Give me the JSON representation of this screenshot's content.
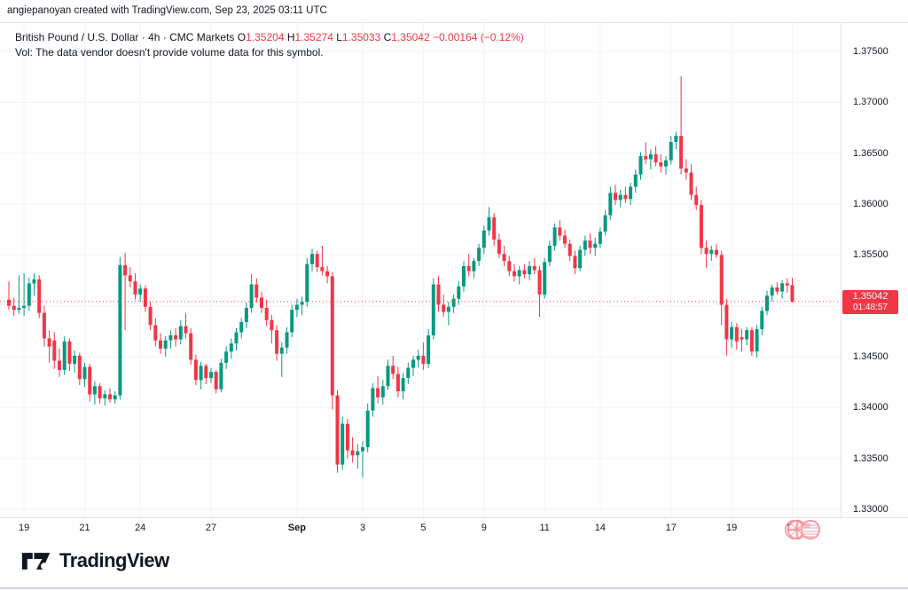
{
  "attribution": "angiepanoyan created with TradingView.com, Sep 23, 2025 03:11 UTC",
  "legend": {
    "title": "British Pound / U.S. Dollar · 4h · CMC Markets",
    "ohlc": [
      {
        "label": "O",
        "value": "1.35204"
      },
      {
        "label": "H",
        "value": "1.35274"
      },
      {
        "label": "L",
        "value": "1.35033"
      },
      {
        "label": "C",
        "value": "1.35042"
      }
    ],
    "change": "−0.00164 (−0.12%)",
    "volume_note": "Vol: The data vendor doesn't provide volume data for this symbol."
  },
  "price_badge": {
    "price": "1.35042",
    "countdown": "01:48:57"
  },
  "logo": {
    "text": "TradingView"
  },
  "watermark": {
    "icons": [
      "gb-flag-icon",
      "us-flag-icon"
    ]
  },
  "colors": {
    "up": "#089981",
    "down": "#f23645",
    "accent_red": "#f23645",
    "grid": "#f0f3fa",
    "axis_border": "#e0e3eb",
    "text": "#131722",
    "watermark_pink": "#f48a92"
  },
  "chart_data": {
    "type": "candlestick",
    "title": "British Pound / U.S. Dollar",
    "interval": "4h",
    "exchange": "CMC Markets",
    "ylim": [
      1.33,
      1.375
    ],
    "grid": true,
    "last_price": 1.35042,
    "price_axis_labels": [
      {
        "text": "1.37500",
        "price": 1.375
      },
      {
        "text": "1.37000",
        "price": 1.37
      },
      {
        "text": "1.36500",
        "price": 1.365
      },
      {
        "text": "1.36000",
        "price": 1.36
      },
      {
        "text": "1.35500",
        "price": 1.355
      },
      {
        "text": "1.34500",
        "price": 1.345
      },
      {
        "text": "1.34000",
        "price": 1.34
      },
      {
        "text": "1.33500",
        "price": 1.335
      },
      {
        "text": "1.33000",
        "price": 1.33
      }
    ],
    "price_gridlines": [
      1.375,
      1.37,
      1.365,
      1.36,
      1.355,
      1.35,
      1.345,
      1.34,
      1.335,
      1.33
    ],
    "time_ticks": [
      {
        "label": "19",
        "bar": 3,
        "bold": false
      },
      {
        "label": "21",
        "bar": 15,
        "bold": false
      },
      {
        "label": "24",
        "bar": 26,
        "bold": false
      },
      {
        "label": "27",
        "bar": 40,
        "bold": false
      },
      {
        "label": "Sep",
        "bar": 57,
        "bold": true
      },
      {
        "label": "3",
        "bar": 70,
        "bold": false
      },
      {
        "label": "5",
        "bar": 82,
        "bold": false
      },
      {
        "label": "9",
        "bar": 94,
        "bold": false
      },
      {
        "label": "11",
        "bar": 106,
        "bold": false
      },
      {
        "label": "14",
        "bar": 117,
        "bold": false
      },
      {
        "label": "17",
        "bar": 131,
        "bold": false
      },
      {
        "label": "19",
        "bar": 143,
        "bold": false
      },
      {
        "label": "23",
        "bar": 155,
        "bold": false
      }
    ],
    "candles": [
      [
        1.3506,
        1.3524,
        1.3496,
        1.35
      ],
      [
        1.35,
        1.3508,
        1.349,
        1.3496
      ],
      [
        1.3496,
        1.353,
        1.3492,
        1.3498
      ],
      [
        1.3498,
        1.3532,
        1.349,
        1.35
      ],
      [
        1.35,
        1.3528,
        1.3495,
        1.3522
      ],
      [
        1.3522,
        1.3532,
        1.351,
        1.3526
      ],
      [
        1.3526,
        1.353,
        1.3488,
        1.3493
      ],
      [
        1.3493,
        1.35,
        1.346,
        1.3468
      ],
      [
        1.3468,
        1.3476,
        1.3444,
        1.346
      ],
      [
        1.3466,
        1.3474,
        1.3438,
        1.3446
      ],
      [
        1.3446,
        1.3458,
        1.343,
        1.3437
      ],
      [
        1.3437,
        1.347,
        1.3432,
        1.3465
      ],
      [
        1.3465,
        1.3468,
        1.3436,
        1.3443
      ],
      [
        1.3443,
        1.3456,
        1.3434,
        1.3451
      ],
      [
        1.3451,
        1.3454,
        1.3422,
        1.3428
      ],
      [
        1.3428,
        1.3444,
        1.342,
        1.344
      ],
      [
        1.344,
        1.3443,
        1.3406,
        1.3413
      ],
      [
        1.3413,
        1.3426,
        1.3403,
        1.3421
      ],
      [
        1.3421,
        1.3424,
        1.3404,
        1.3409
      ],
      [
        1.3409,
        1.3417,
        1.3402,
        1.3413
      ],
      [
        1.3413,
        1.3419,
        1.3405,
        1.3408
      ],
      [
        1.3408,
        1.3416,
        1.3404,
        1.3412
      ],
      [
        1.3412,
        1.3548,
        1.3408,
        1.354
      ],
      [
        1.354,
        1.3552,
        1.3476,
        1.353
      ],
      [
        1.353,
        1.3538,
        1.3518,
        1.3524
      ],
      [
        1.3524,
        1.3532,
        1.3506,
        1.3511
      ],
      [
        1.3511,
        1.3521,
        1.3504,
        1.3517
      ],
      [
        1.3517,
        1.352,
        1.3494,
        1.3499
      ],
      [
        1.3499,
        1.3504,
        1.3476,
        1.3481
      ],
      [
        1.3481,
        1.3488,
        1.346,
        1.3466
      ],
      [
        1.3466,
        1.3473,
        1.3453,
        1.3458
      ],
      [
        1.3458,
        1.347,
        1.345,
        1.3466
      ],
      [
        1.3466,
        1.3476,
        1.3458,
        1.3471
      ],
      [
        1.3471,
        1.3478,
        1.346,
        1.3467
      ],
      [
        1.3467,
        1.3486,
        1.3462,
        1.348
      ],
      [
        1.348,
        1.3493,
        1.3468,
        1.3473
      ],
      [
        1.3473,
        1.3478,
        1.3442,
        1.3447
      ],
      [
        1.3447,
        1.3452,
        1.3422,
        1.3427
      ],
      [
        1.3427,
        1.3445,
        1.3418,
        1.3441
      ],
      [
        1.3441,
        1.3443,
        1.3423,
        1.3429
      ],
      [
        1.3429,
        1.3439,
        1.3424,
        1.3435
      ],
      [
        1.3435,
        1.3437,
        1.3414,
        1.3418
      ],
      [
        1.3418,
        1.3448,
        1.3415,
        1.3444
      ],
      [
        1.3444,
        1.346,
        1.3438,
        1.3455
      ],
      [
        1.3455,
        1.3468,
        1.3448,
        1.3463
      ],
      [
        1.3463,
        1.3478,
        1.3456,
        1.3474
      ],
      [
        1.3474,
        1.3488,
        1.3468,
        1.3484
      ],
      [
        1.3484,
        1.3503,
        1.3478,
        1.3498
      ],
      [
        1.3498,
        1.3531,
        1.3493,
        1.3521
      ],
      [
        1.3521,
        1.3527,
        1.3503,
        1.3508
      ],
      [
        1.3508,
        1.3514,
        1.3493,
        1.3498
      ],
      [
        1.3498,
        1.3506,
        1.348,
        1.3486
      ],
      [
        1.3486,
        1.3491,
        1.3463,
        1.3476
      ],
      [
        1.3476,
        1.3481,
        1.3446,
        1.3453
      ],
      [
        1.3453,
        1.3464,
        1.343,
        1.3459
      ],
      [
        1.3459,
        1.3479,
        1.3453,
        1.3474
      ],
      [
        1.3474,
        1.3501,
        1.3469,
        1.3496
      ],
      [
        1.3496,
        1.3507,
        1.3489,
        1.3501
      ],
      [
        1.3501,
        1.3509,
        1.3491,
        1.3504
      ],
      [
        1.3504,
        1.3547,
        1.3499,
        1.3541
      ],
      [
        1.3541,
        1.3556,
        1.3534,
        1.3551
      ],
      [
        1.3551,
        1.3554,
        1.3533,
        1.3538
      ],
      [
        1.3538,
        1.3559,
        1.353,
        1.3534
      ],
      [
        1.3534,
        1.3539,
        1.3522,
        1.3529
      ],
      [
        1.3529,
        1.3533,
        1.3398,
        1.3412
      ],
      [
        1.3412,
        1.3417,
        1.3336,
        1.3344
      ],
      [
        1.3344,
        1.3391,
        1.3339,
        1.3384
      ],
      [
        1.3384,
        1.3389,
        1.335,
        1.3358
      ],
      [
        1.3358,
        1.3371,
        1.3346,
        1.3353
      ],
      [
        1.3353,
        1.3364,
        1.334,
        1.3357
      ],
      [
        1.3357,
        1.3367,
        1.3331,
        1.3361
      ],
      [
        1.3361,
        1.3404,
        1.3356,
        1.3397
      ],
      [
        1.3397,
        1.3424,
        1.3391,
        1.3419
      ],
      [
        1.3419,
        1.3431,
        1.3404,
        1.341
      ],
      [
        1.341,
        1.3427,
        1.3403,
        1.3421
      ],
      [
        1.3421,
        1.3447,
        1.3417,
        1.3441
      ],
      [
        1.3441,
        1.3451,
        1.3428,
        1.3433
      ],
      [
        1.3433,
        1.344,
        1.341,
        1.3416
      ],
      [
        1.3416,
        1.3434,
        1.3408,
        1.3429
      ],
      [
        1.3429,
        1.3444,
        1.3423,
        1.3439
      ],
      [
        1.3439,
        1.3451,
        1.3431,
        1.3447
      ],
      [
        1.3447,
        1.3457,
        1.3439,
        1.3451
      ],
      [
        1.3451,
        1.3464,
        1.3437,
        1.3443
      ],
      [
        1.3443,
        1.3477,
        1.3439,
        1.3471
      ],
      [
        1.3471,
        1.3527,
        1.3467,
        1.3521
      ],
      [
        1.3521,
        1.3529,
        1.3494,
        1.3501
      ],
      [
        1.3501,
        1.3511,
        1.3489,
        1.3494
      ],
      [
        1.3494,
        1.3504,
        1.3481,
        1.3499
      ],
      [
        1.3499,
        1.3511,
        1.3493,
        1.3507
      ],
      [
        1.3507,
        1.3524,
        1.3501,
        1.3519
      ],
      [
        1.3519,
        1.3544,
        1.3514,
        1.3539
      ],
      [
        1.3539,
        1.3551,
        1.3529,
        1.3534
      ],
      [
        1.3534,
        1.3547,
        1.3527,
        1.3544
      ],
      [
        1.3544,
        1.3561,
        1.3539,
        1.3557
      ],
      [
        1.3557,
        1.3579,
        1.3551,
        1.3574
      ],
      [
        1.3574,
        1.3597,
        1.3569,
        1.3587
      ],
      [
        1.3587,
        1.3591,
        1.3559,
        1.3565
      ],
      [
        1.3565,
        1.3571,
        1.3547,
        1.3551
      ],
      [
        1.3551,
        1.3559,
        1.3539,
        1.3544
      ],
      [
        1.3544,
        1.3549,
        1.3529,
        1.3534
      ],
      [
        1.3534,
        1.3541,
        1.3524,
        1.3529
      ],
      [
        1.3529,
        1.3539,
        1.3521,
        1.3535
      ],
      [
        1.3535,
        1.3541,
        1.3527,
        1.3531
      ],
      [
        1.3531,
        1.3544,
        1.3525,
        1.3539
      ],
      [
        1.3539,
        1.3547,
        1.3531,
        1.3535
      ],
      [
        1.3535,
        1.3539,
        1.3489,
        1.3511
      ],
      [
        1.3511,
        1.3547,
        1.3507,
        1.3543
      ],
      [
        1.3543,
        1.3564,
        1.3539,
        1.3559
      ],
      [
        1.3559,
        1.3581,
        1.3554,
        1.3577
      ],
      [
        1.3577,
        1.3584,
        1.3564,
        1.3569
      ],
      [
        1.3569,
        1.3575,
        1.3557,
        1.3561
      ],
      [
        1.3561,
        1.3565,
        1.3544,
        1.3549
      ],
      [
        1.3549,
        1.3554,
        1.3531,
        1.3537
      ],
      [
        1.3537,
        1.3559,
        1.3534,
        1.3555
      ],
      [
        1.3555,
        1.3569,
        1.3549,
        1.3564
      ],
      [
        1.3564,
        1.3571,
        1.3551,
        1.3557
      ],
      [
        1.3557,
        1.3567,
        1.3549,
        1.3561
      ],
      [
        1.3561,
        1.3577,
        1.3557,
        1.3573
      ],
      [
        1.3573,
        1.3594,
        1.3569,
        1.3589
      ],
      [
        1.3589,
        1.3617,
        1.3584,
        1.3611
      ],
      [
        1.3611,
        1.3619,
        1.3599,
        1.3604
      ],
      [
        1.3604,
        1.3614,
        1.3597,
        1.3609
      ],
      [
        1.3609,
        1.3617,
        1.3601,
        1.3605
      ],
      [
        1.3605,
        1.3621,
        1.3599,
        1.3617
      ],
      [
        1.3617,
        1.3634,
        1.3611,
        1.3629
      ],
      [
        1.3629,
        1.3651,
        1.3624,
        1.3647
      ],
      [
        1.3647,
        1.3661,
        1.3639,
        1.3644
      ],
      [
        1.3644,
        1.3654,
        1.3634,
        1.3649
      ],
      [
        1.3649,
        1.3657,
        1.3637,
        1.3641
      ],
      [
        1.3641,
        1.3649,
        1.3631,
        1.3637
      ],
      [
        1.3637,
        1.3647,
        1.3629,
        1.3643
      ],
      [
        1.3643,
        1.3667,
        1.3639,
        1.3661
      ],
      [
        1.3661,
        1.3671,
        1.3654,
        1.3667
      ],
      [
        1.3667,
        1.3726,
        1.3629,
        1.3635
      ],
      [
        1.3635,
        1.3644,
        1.3624,
        1.3631
      ],
      [
        1.3631,
        1.3639,
        1.3604,
        1.3609
      ],
      [
        1.3609,
        1.3617,
        1.3594,
        1.3599
      ],
      [
        1.3599,
        1.3604,
        1.3551,
        1.3557
      ],
      [
        1.3557,
        1.3564,
        1.3537,
        1.3551
      ],
      [
        1.3551,
        1.3559,
        1.3544,
        1.3555
      ],
      [
        1.3555,
        1.3561,
        1.3547,
        1.355
      ],
      [
        1.355,
        1.3554,
        1.3481,
        1.3501
      ],
      [
        1.3501,
        1.3507,
        1.3451,
        1.3467
      ],
      [
        1.3467,
        1.3484,
        1.3459,
        1.3479
      ],
      [
        1.3479,
        1.3483,
        1.3457,
        1.3465
      ],
      [
        1.3469,
        1.3477,
        1.3455,
        1.3467
      ],
      [
        1.3467,
        1.3479,
        1.3461,
        1.3476
      ],
      [
        1.3476,
        1.3479,
        1.3451,
        1.3455
      ],
      [
        1.3455,
        1.3481,
        1.3449,
        1.3477
      ],
      [
        1.3477,
        1.3499,
        1.3471,
        1.3495
      ],
      [
        1.3495,
        1.3515,
        1.3491,
        1.351
      ],
      [
        1.351,
        1.3521,
        1.3504,
        1.3518
      ],
      [
        1.3518,
        1.3523,
        1.3511,
        1.3514
      ],
      [
        1.3514,
        1.3525,
        1.3507,
        1.3522
      ],
      [
        1.3522,
        1.3527,
        1.3513,
        1.352
      ],
      [
        1.35204,
        1.35274,
        1.35033,
        1.35042
      ]
    ]
  }
}
